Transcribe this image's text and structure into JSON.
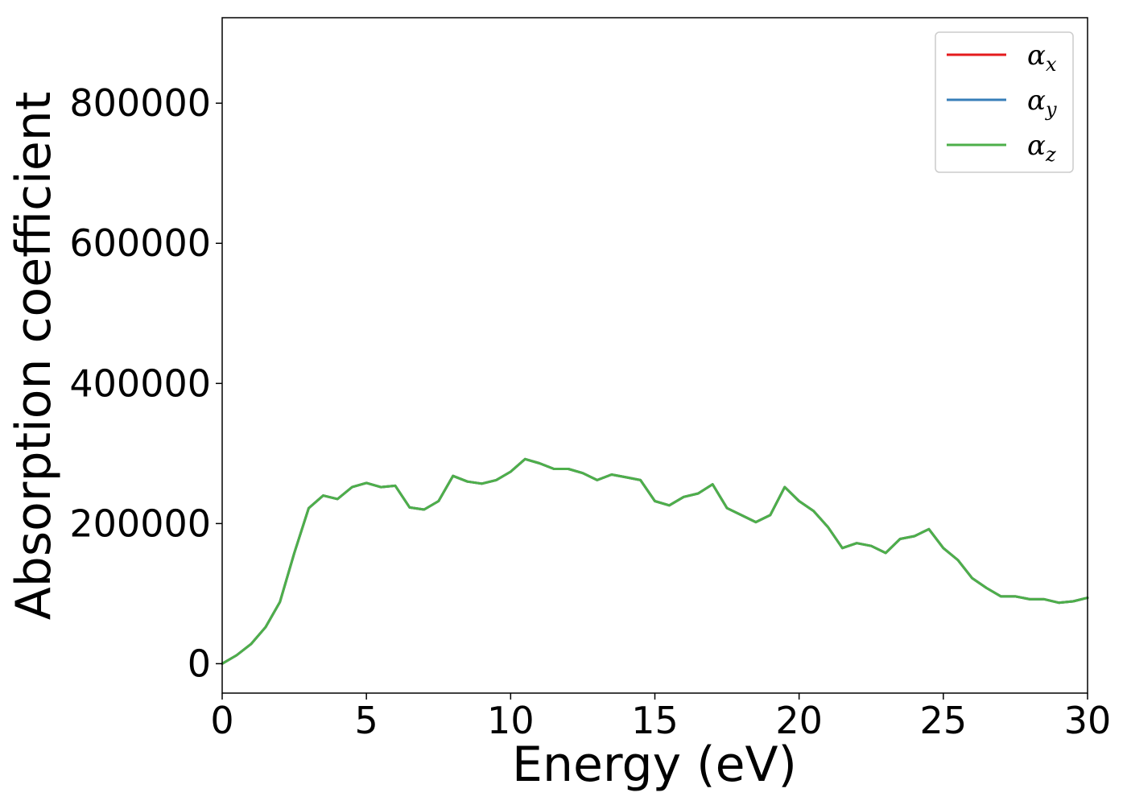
{
  "chart_data": {
    "type": "line",
    "title": "",
    "xlabel": "Energy (eV)",
    "ylabel": "Absorption coefficient",
    "xlim": [
      0,
      30
    ],
    "ylim": [
      -42000,
      922000
    ],
    "xticks": [
      0,
      5,
      10,
      15,
      20,
      25,
      30
    ],
    "yticks": [
      0,
      200000,
      400000,
      600000,
      800000
    ],
    "grid": false,
    "legend_position": "top-right",
    "x": [
      0,
      0.5,
      1,
      1.5,
      2,
      2.5,
      3,
      3.5,
      4,
      4.5,
      5,
      5.5,
      6,
      6.5,
      7,
      7.5,
      8,
      8.5,
      9,
      9.5,
      10,
      10.5,
      11,
      11.5,
      12,
      12.5,
      13,
      13.5,
      14,
      14.5,
      15,
      15.5,
      16,
      16.5,
      17,
      17.5,
      18,
      18.5,
      19,
      19.5,
      20,
      20.5,
      21,
      21.5,
      22,
      22.5,
      23,
      23.5,
      24,
      24.5,
      25,
      25.5,
      26,
      26.5,
      27,
      27.5,
      28,
      28.5,
      29,
      29.5,
      30
    ],
    "series": [
      {
        "name": "α",
        "subscript": "x",
        "color": "#e41a1c",
        "values": [
          0,
          12000,
          28000,
          52000,
          88000,
          158000,
          222000,
          240000,
          235000,
          252000,
          258000,
          252000,
          254000,
          223000,
          220000,
          232000,
          268000,
          260000,
          257000,
          262000,
          274000,
          292000,
          286000,
          278000,
          278000,
          272000,
          262000,
          270000,
          266000,
          262000,
          232000,
          226000,
          238000,
          243000,
          256000,
          222000,
          212000,
          202000,
          212000,
          252000,
          232000,
          218000,
          195000,
          165000,
          172000,
          168000,
          158000,
          178000,
          182000,
          192000,
          165000,
          148000,
          122000,
          108000,
          96000,
          96000,
          92000,
          92000,
          87000,
          89000,
          94000
        ]
      },
      {
        "name": "α",
        "subscript": "y",
        "color": "#377eb8",
        "values": [
          0,
          12000,
          28000,
          52000,
          88000,
          158000,
          222000,
          240000,
          235000,
          252000,
          258000,
          252000,
          254000,
          223000,
          220000,
          232000,
          268000,
          260000,
          257000,
          262000,
          274000,
          292000,
          286000,
          278000,
          278000,
          272000,
          262000,
          270000,
          266000,
          262000,
          232000,
          226000,
          238000,
          243000,
          256000,
          222000,
          212000,
          202000,
          212000,
          252000,
          232000,
          218000,
          195000,
          165000,
          172000,
          168000,
          158000,
          178000,
          182000,
          192000,
          165000,
          148000,
          122000,
          108000,
          96000,
          96000,
          92000,
          92000,
          87000,
          89000,
          94000
        ]
      },
      {
        "name": "α",
        "subscript": "z",
        "color": "#4daf4a",
        "values": [
          0,
          12000,
          28000,
          52000,
          88000,
          158000,
          222000,
          240000,
          235000,
          252000,
          258000,
          252000,
          254000,
          223000,
          220000,
          232000,
          268000,
          260000,
          257000,
          262000,
          274000,
          292000,
          286000,
          278000,
          278000,
          272000,
          262000,
          270000,
          266000,
          262000,
          232000,
          226000,
          238000,
          243000,
          256000,
          222000,
          212000,
          202000,
          212000,
          252000,
          232000,
          218000,
          195000,
          165000,
          172000,
          168000,
          158000,
          178000,
          182000,
          192000,
          165000,
          148000,
          122000,
          108000,
          96000,
          96000,
          92000,
          92000,
          87000,
          89000,
          94000
        ]
      }
    ]
  }
}
